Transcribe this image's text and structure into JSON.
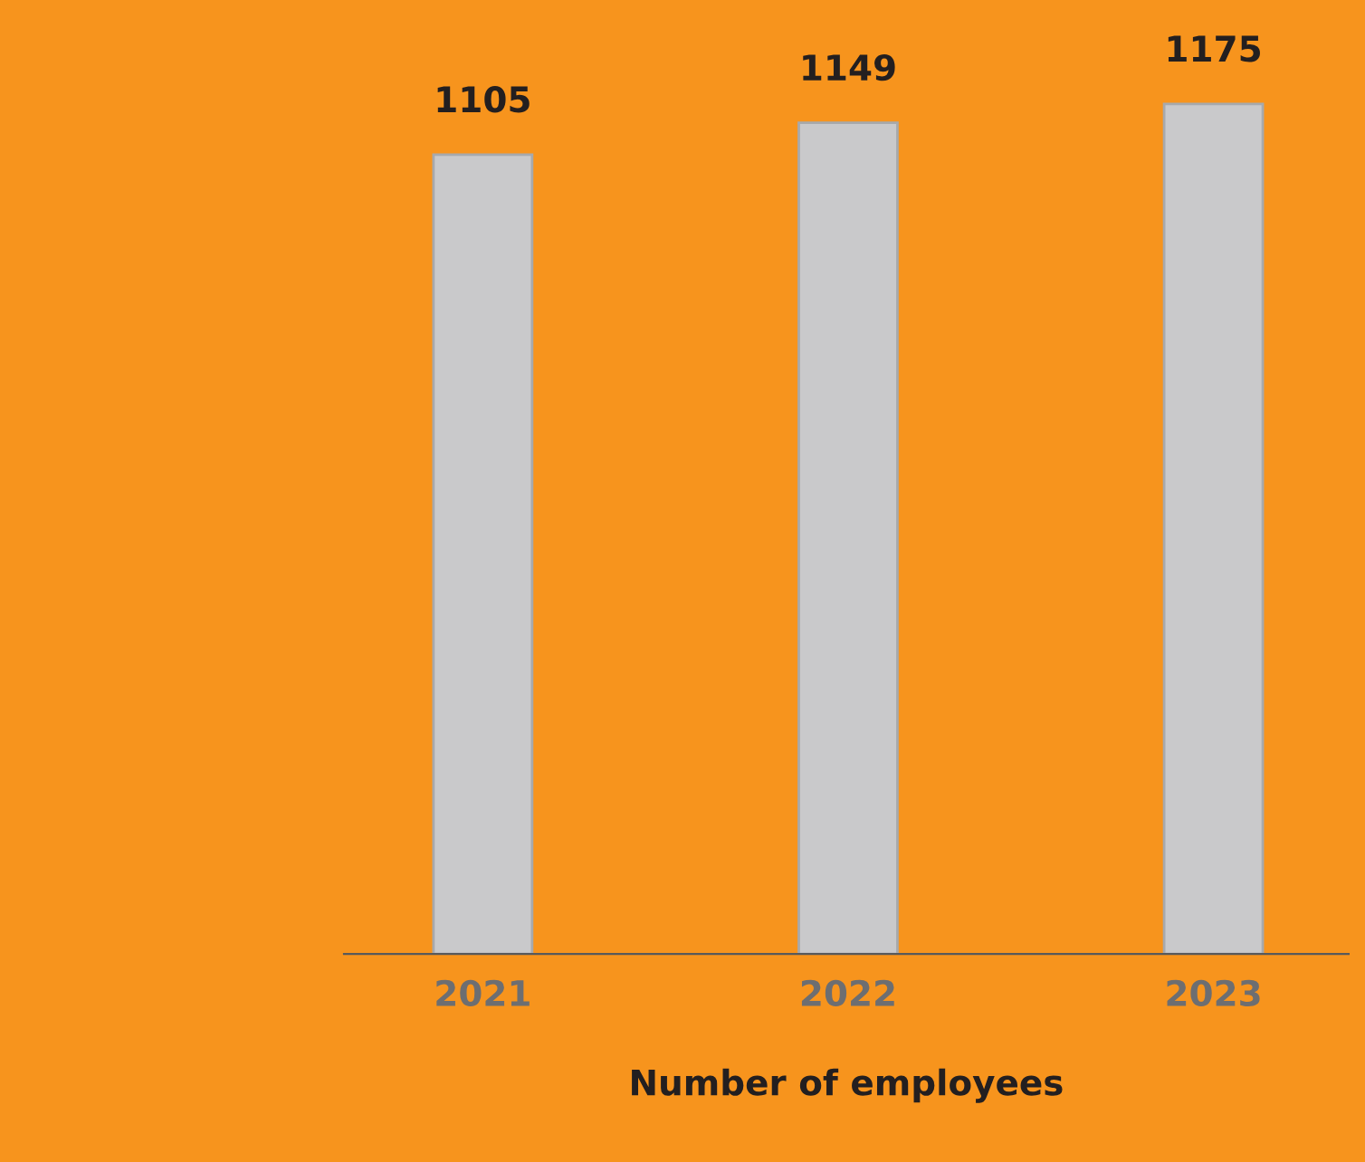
{
  "chart_data": {
    "type": "bar",
    "xlabel": "Number of employees",
    "categories": [
      "2021",
      "2022",
      "2023"
    ],
    "values": [
      1105,
      1149,
      1175
    ],
    "color": "#c9c9cb",
    "data_labels": true,
    "grid": false,
    "legend": false,
    "tick_labels": "x"
  }
}
